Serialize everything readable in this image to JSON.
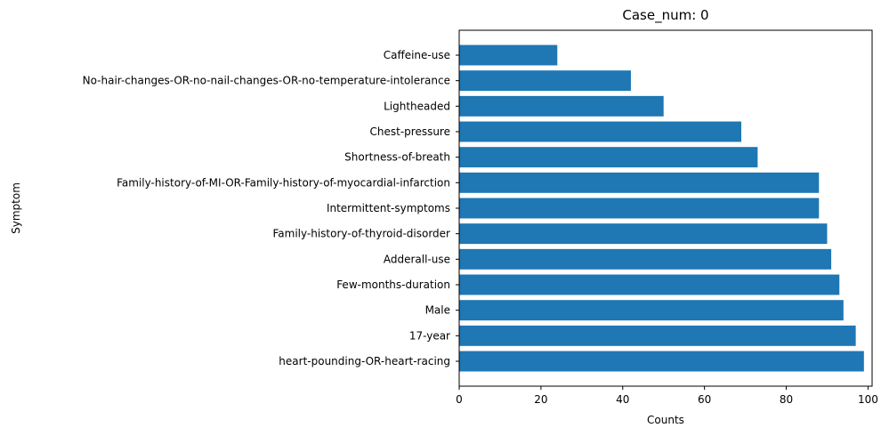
{
  "chart_data": {
    "type": "bar",
    "orientation": "horizontal",
    "title": "Case_num: 0",
    "xlabel": "Counts",
    "ylabel": "Symptom",
    "xlim": [
      0,
      101
    ],
    "xticks": [
      0,
      20,
      40,
      60,
      80,
      100
    ],
    "grid": false,
    "bar_color": "#1f77b4",
    "categories": [
      "Caffeine-use",
      "No-hair-changes-OR-no-nail-changes-OR-no-temperature-intolerance",
      "Lightheaded",
      "Chest-pressure",
      "Shortness-of-breath",
      "Family-history-of-MI-OR-Family-history-of-myocardial-infarction",
      "Intermittent-symptoms",
      "Family-history-of-thyroid-disorder",
      "Adderall-use",
      "Few-months-duration",
      "Male",
      "17-year",
      "heart-pounding-OR-heart-racing"
    ],
    "values": [
      24,
      42,
      50,
      69,
      73,
      88,
      88,
      90,
      91,
      93,
      94,
      97,
      99
    ]
  }
}
